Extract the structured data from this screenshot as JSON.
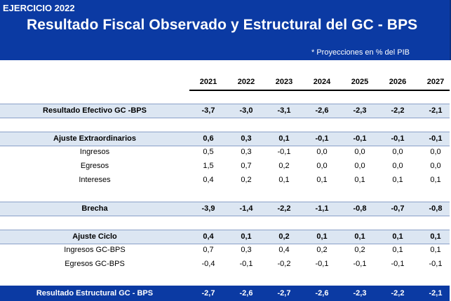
{
  "header": {
    "ejercicio": "EJERCICIO 2022",
    "title": "Resultado Fiscal Observado y Estructural del GC - BPS",
    "note": "* Proyecciones en % del PIB"
  },
  "years": [
    "2021",
    "2022",
    "2023",
    "2024",
    "2025",
    "2026",
    "2027"
  ],
  "rows": [
    {
      "label": "Resultado Efectivo GC -BPS",
      "values": [
        "-3,7",
        "-3,0",
        "-3,1",
        "-2,6",
        "-2,3",
        "-2,2",
        "-2,1"
      ]
    },
    {
      "label": "Ajuste Extraordinarios",
      "values": [
        "0,6",
        "0,3",
        "0,1",
        "-0,1",
        "-0,1",
        "-0,1",
        "-0,1"
      ]
    },
    {
      "label": "Ingresos",
      "values": [
        "0,5",
        "0,3",
        "-0,1",
        "0,0",
        "0,0",
        "0,0",
        "0,0"
      ]
    },
    {
      "label": "Egresos",
      "values": [
        "1,5",
        "0,7",
        "0,2",
        "0,0",
        "0,0",
        "0,0",
        "0,0"
      ]
    },
    {
      "label": "Intereses",
      "values": [
        "0,4",
        "0,2",
        "0,1",
        "0,1",
        "0,1",
        "0,1",
        "0,1"
      ]
    },
    {
      "label": "Brecha",
      "values": [
        "-3,9",
        "-1,4",
        "-2,2",
        "-1,1",
        "-0,8",
        "-0,7",
        "-0,8"
      ]
    },
    {
      "label": "Ajuste Ciclo",
      "values": [
        "0,4",
        "0,1",
        "0,2",
        "0,1",
        "0,1",
        "0,1",
        "0,1"
      ]
    },
    {
      "label": "Ingresos GC-BPS",
      "values": [
        "0,7",
        "0,3",
        "0,4",
        "0,2",
        "0,2",
        "0,1",
        "0,1"
      ]
    },
    {
      "label": "Egresos GC-BPS",
      "values": [
        "-0,4",
        "-0,1",
        "-0,2",
        "-0,1",
        "-0,1",
        "-0,1",
        "-0,1"
      ]
    },
    {
      "label": "Resultado Estructural GC - BPS",
      "values": [
        "-2,7",
        "-2,6",
        "-2,7",
        "-2,6",
        "-2,3",
        "-2,2",
        "-2,1"
      ]
    }
  ]
}
